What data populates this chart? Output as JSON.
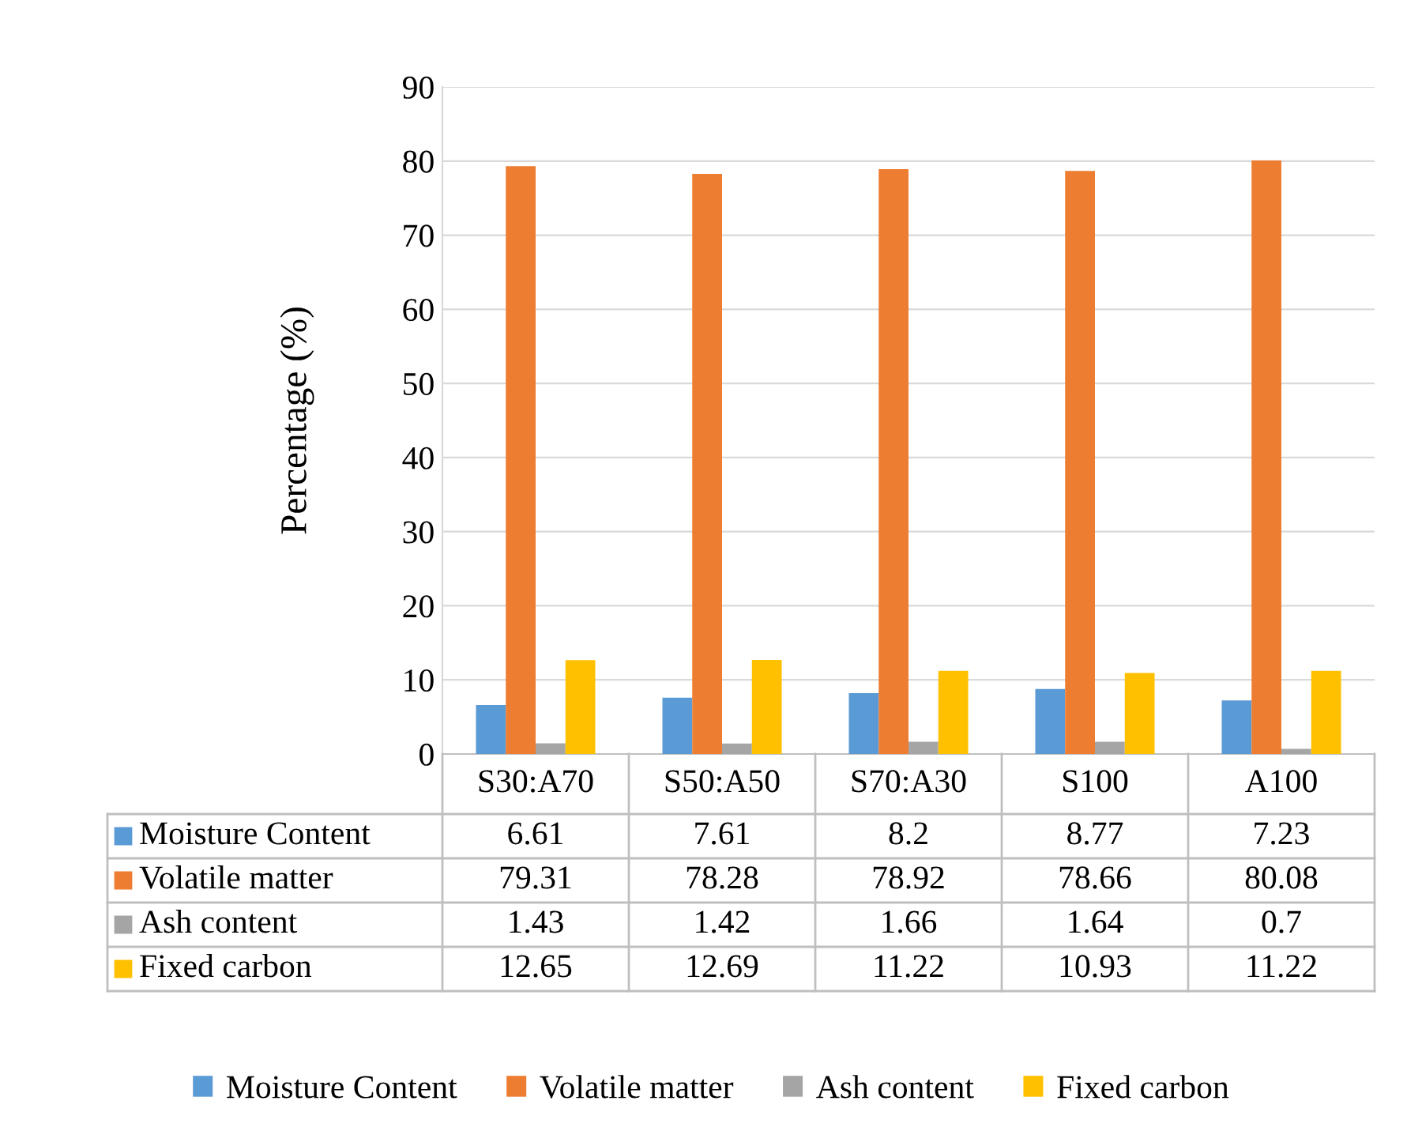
{
  "chart_data": {
    "type": "bar",
    "ylabel": "Percentage (%)",
    "categories": [
      "S30:A70",
      "S50:A50",
      "S70:A30",
      "S100",
      "A100"
    ],
    "series": [
      {
        "name": "Moisture Content",
        "color": "#5b9bd5",
        "values": [
          6.61,
          7.61,
          8.2,
          8.77,
          7.23
        ]
      },
      {
        "name": "Volatile matter",
        "color": "#ed7d31",
        "values": [
          79.31,
          78.28,
          78.92,
          78.66,
          80.08
        ]
      },
      {
        "name": "Ash content",
        "color": "#a5a5a5",
        "values": [
          1.43,
          1.42,
          1.66,
          1.64,
          0.7
        ]
      },
      {
        "name": "Fixed carbon",
        "color": "#ffc000",
        "values": [
          12.65,
          12.69,
          11.22,
          10.93,
          11.22
        ]
      }
    ],
    "ylim": [
      0,
      90
    ],
    "yticks": [
      0,
      10,
      20,
      30,
      40,
      50,
      60,
      70,
      80,
      90
    ],
    "grid": "y",
    "legend": "bottom",
    "data_labels": true
  }
}
